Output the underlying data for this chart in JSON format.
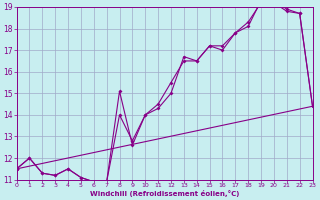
{
  "bg_color": "#c8eef0",
  "grid_color": "#a0aac8",
  "line_color": "#880088",
  "xlabel": "Windchill (Refroidissement éolien,°C)",
  "xlim": [
    0,
    23
  ],
  "ylim": [
    11,
    19
  ],
  "yticks": [
    11,
    12,
    13,
    14,
    15,
    16,
    17,
    18,
    19
  ],
  "xticks": [
    0,
    1,
    2,
    3,
    4,
    5,
    6,
    7,
    8,
    9,
    10,
    11,
    12,
    13,
    14,
    15,
    16,
    17,
    18,
    19,
    20,
    21,
    22,
    23
  ],
  "curve1_x": [
    0,
    1,
    2,
    3,
    4,
    5,
    6,
    7,
    8,
    9,
    10,
    11,
    12,
    13,
    14,
    15,
    16,
    17,
    18,
    19,
    20,
    21,
    22,
    23
  ],
  "curve1_y": [
    11.5,
    12.0,
    11.3,
    11.2,
    11.5,
    11.1,
    10.9,
    10.9,
    15.1,
    12.6,
    14.0,
    14.3,
    15.0,
    16.7,
    16.5,
    17.2,
    17.0,
    17.8,
    18.1,
    19.3,
    19.2,
    18.8,
    18.7,
    14.4
  ],
  "curve2_x": [
    0,
    1,
    2,
    3,
    4,
    5,
    6,
    7,
    8,
    9,
    10,
    11,
    12,
    13,
    14,
    15,
    16,
    17,
    18,
    19,
    20,
    21,
    22,
    23
  ],
  "curve2_y": [
    11.5,
    12.0,
    11.3,
    11.2,
    11.5,
    11.1,
    10.9,
    10.9,
    14.0,
    12.8,
    14.0,
    14.5,
    15.5,
    16.5,
    16.5,
    17.2,
    17.2,
    17.8,
    18.3,
    19.2,
    19.3,
    18.9,
    18.7,
    14.4
  ],
  "line3_x": [
    0,
    23
  ],
  "line3_y": [
    11.5,
    14.4
  ]
}
